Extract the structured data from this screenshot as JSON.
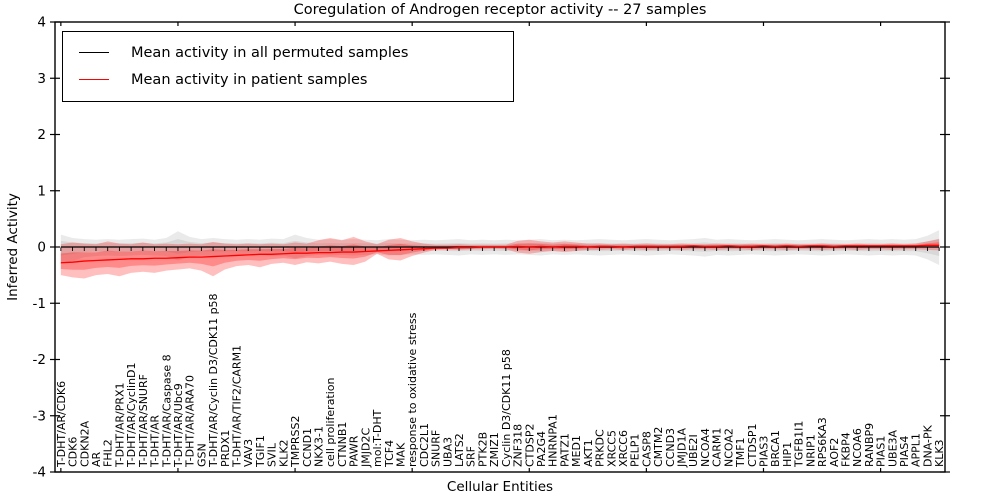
{
  "chart_data": {
    "type": "line",
    "title": "Coregulation of Androgen receptor activity -- 27 samples",
    "xlabel": "Cellular Entities",
    "ylabel": "Inferred Activity",
    "ylim": [
      -4,
      4
    ],
    "yticks": [
      4,
      3,
      2,
      1,
      0,
      -1,
      -2,
      -3,
      -4
    ],
    "x_major_tick_interval": 10,
    "grid": false,
    "legend_position": "upper left",
    "categories": [
      "T-DHT/AR/CDK6",
      "CDK6",
      "CDKN2A",
      "AR",
      "FHL2",
      "T-DHT/AR/PRX1",
      "T-DHT/AR/CyclinD1",
      "T-DHT/AR/SNURF",
      "T-DHT/AR",
      "T-DHT/AR/Caspase 8",
      "T-DHT/AR/Ubc9",
      "T-DHT/AR/ARA70",
      "GSN",
      "T-DHT/AR/Cyclin D3/CDK11 p58",
      "PRDX1",
      "T-DHT/AR/TIF2/CARM1",
      "VAV3",
      "TGIF1",
      "SVIL",
      "KLK2",
      "TMPRSS2",
      "CCND1",
      "NKX3-1",
      "cell proliferation",
      "CTNNB1",
      "PAWR",
      "JMJD2C",
      "mol:T-DHT",
      "TCF4",
      "MAK",
      "response to oxidative stress",
      "CDC2L1",
      "SNURF",
      "UBA3",
      "LATS2",
      "SRF",
      "PTK2B",
      "ZMIZ1",
      "Cyclin D3/CDK11 p58",
      "ZNF318",
      "CTDSP2",
      "PA2G4",
      "HNRNPA1",
      "PATZ1",
      "MED1",
      "AKT1",
      "PRKDC",
      "XRCC5",
      "XRCC6",
      "PELP1",
      "CASP8",
      "CMTM2",
      "CCND3",
      "JMJD1A",
      "UBE2I",
      "NCOA4",
      "CARM1",
      "NCOA2",
      "TMF1",
      "CTDSP1",
      "PIAS3",
      "BRCA1",
      "HIP1",
      "TGFB1I1",
      "NRIP1",
      "RPS6KA3",
      "AOF2",
      "FKBP4",
      "NCOA6",
      "RANBP9",
      "PIAS1",
      "UBE3A",
      "PIAS4",
      "APPL1",
      "DNA-PK",
      "KLK3"
    ],
    "series": [
      {
        "name": "Mean activity in all permuted samples",
        "color": "#000000",
        "band_color": "#aaaaaa",
        "values": [
          0,
          0,
          0,
          0,
          0,
          0,
          0,
          0,
          0,
          0,
          0,
          0,
          0,
          0,
          0,
          0,
          0,
          0,
          0,
          0,
          0,
          0,
          0,
          0,
          0,
          0,
          0,
          0,
          0,
          0,
          0,
          0,
          0,
          0,
          0,
          0,
          0,
          0,
          0,
          0,
          0,
          0,
          0,
          0,
          0,
          0,
          0,
          0,
          0,
          0,
          0,
          0,
          0,
          0,
          0,
          0,
          0,
          0,
          0,
          0,
          0,
          0,
          0,
          0,
          0,
          0,
          0,
          0,
          0,
          0,
          0,
          0,
          0,
          0,
          0,
          0
        ],
        "band_low": [
          -0.3,
          -0.25,
          -0.18,
          -0.16,
          -0.15,
          -0.16,
          -0.15,
          -0.14,
          -0.15,
          -0.16,
          -0.24,
          -0.18,
          -0.15,
          -0.16,
          -0.15,
          -0.14,
          -0.15,
          -0.14,
          -0.16,
          -0.15,
          -0.2,
          -0.16,
          -0.14,
          -0.15,
          -0.14,
          -0.15,
          -0.14,
          -0.13,
          -0.15,
          -0.14,
          -0.13,
          -0.14,
          -0.13,
          -0.14,
          -0.15,
          -0.13,
          -0.14,
          -0.13,
          -0.14,
          -0.13,
          -0.14,
          -0.15,
          -0.13,
          -0.14,
          -0.13,
          -0.14,
          -0.15,
          -0.14,
          -0.13,
          -0.14,
          -0.15,
          -0.14,
          -0.13,
          -0.14,
          -0.15,
          -0.17,
          -0.14,
          -0.15,
          -0.14,
          -0.13,
          -0.14,
          -0.15,
          -0.14,
          -0.13,
          -0.14,
          -0.15,
          -0.14,
          -0.13,
          -0.14,
          -0.15,
          -0.14,
          -0.15,
          -0.14,
          -0.15,
          -0.22,
          -0.32
        ],
        "band_high": [
          0.22,
          0.16,
          0.14,
          0.13,
          0.14,
          0.13,
          0.14,
          0.15,
          0.13,
          0.16,
          0.28,
          0.18,
          0.14,
          0.16,
          0.14,
          0.13,
          0.14,
          0.13,
          0.15,
          0.14,
          0.22,
          0.16,
          0.13,
          0.14,
          0.13,
          0.14,
          0.13,
          0.12,
          0.14,
          0.13,
          0.12,
          0.13,
          0.12,
          0.13,
          0.14,
          0.12,
          0.13,
          0.12,
          0.13,
          0.12,
          0.13,
          0.14,
          0.12,
          0.13,
          0.12,
          0.13,
          0.14,
          0.13,
          0.12,
          0.13,
          0.14,
          0.13,
          0.12,
          0.13,
          0.14,
          0.16,
          0.13,
          0.14,
          0.13,
          0.12,
          0.13,
          0.14,
          0.13,
          0.12,
          0.13,
          0.14,
          0.13,
          0.12,
          0.13,
          0.14,
          0.13,
          0.14,
          0.13,
          0.14,
          0.2,
          0.3
        ]
      },
      {
        "name": "Mean activity in patient samples",
        "color": "#ff0000",
        "band_color": "#ff0000",
        "values": [
          -0.28,
          -0.27,
          -0.25,
          -0.24,
          -0.23,
          -0.22,
          -0.21,
          -0.21,
          -0.2,
          -0.2,
          -0.19,
          -0.18,
          -0.18,
          -0.17,
          -0.16,
          -0.15,
          -0.14,
          -0.13,
          -0.13,
          -0.12,
          -0.11,
          -0.11,
          -0.1,
          -0.1,
          -0.09,
          -0.09,
          -0.08,
          -0.07,
          -0.06,
          -0.05,
          -0.04,
          -0.03,
          -0.02,
          -0.02,
          -0.01,
          -0.01,
          0.0,
          0.0,
          0.0,
          0.01,
          0.0,
          0.01,
          0.0,
          0.01,
          0.01,
          0.0,
          0.01,
          0.01,
          0.0,
          0.01,
          0.01,
          0.01,
          0.01,
          0.01,
          0.02,
          0.01,
          0.01,
          0.02,
          0.01,
          0.01,
          0.02,
          0.01,
          0.02,
          0.01,
          0.02,
          0.02,
          0.01,
          0.02,
          0.02,
          0.02,
          0.02,
          0.02,
          0.02,
          0.02,
          0.03,
          0.03
        ],
        "band_low": [
          -0.5,
          -0.54,
          -0.56,
          -0.5,
          -0.48,
          -0.52,
          -0.46,
          -0.44,
          -0.46,
          -0.42,
          -0.4,
          -0.38,
          -0.42,
          -0.52,
          -0.4,
          -0.34,
          -0.32,
          -0.36,
          -0.3,
          -0.28,
          -0.32,
          -0.27,
          -0.29,
          -0.26,
          -0.3,
          -0.32,
          -0.26,
          -0.12,
          -0.22,
          -0.24,
          -0.16,
          -0.1,
          -0.05,
          -0.04,
          -0.05,
          -0.04,
          -0.04,
          -0.03,
          -0.04,
          -0.1,
          -0.12,
          -0.09,
          -0.07,
          -0.09,
          -0.07,
          -0.05,
          -0.05,
          -0.04,
          -0.05,
          -0.04,
          -0.05,
          -0.04,
          -0.04,
          -0.05,
          -0.04,
          -0.04,
          -0.05,
          -0.04,
          -0.04,
          -0.05,
          -0.04,
          -0.04,
          -0.05,
          -0.04,
          -0.04,
          -0.05,
          -0.04,
          -0.04,
          -0.05,
          -0.04,
          -0.04,
          -0.05,
          -0.04,
          -0.04,
          -0.05,
          -0.06
        ],
        "band_high": [
          0.05,
          0.08,
          0.06,
          0.05,
          0.1,
          0.06,
          0.05,
          0.08,
          0.05,
          0.06,
          0.05,
          0.06,
          0.05,
          0.09,
          0.06,
          0.05,
          0.06,
          0.05,
          0.06,
          0.05,
          0.08,
          0.06,
          0.12,
          0.16,
          0.12,
          0.18,
          0.1,
          0.05,
          0.13,
          0.16,
          0.1,
          0.06,
          0.04,
          0.04,
          0.05,
          0.04,
          0.04,
          0.04,
          0.04,
          0.11,
          0.13,
          0.1,
          0.08,
          0.1,
          0.08,
          0.06,
          0.06,
          0.05,
          0.06,
          0.05,
          0.06,
          0.05,
          0.05,
          0.06,
          0.05,
          0.05,
          0.06,
          0.05,
          0.05,
          0.06,
          0.05,
          0.05,
          0.06,
          0.05,
          0.05,
          0.06,
          0.05,
          0.05,
          0.06,
          0.05,
          0.05,
          0.06,
          0.05,
          0.06,
          0.1,
          0.14
        ]
      }
    ]
  }
}
